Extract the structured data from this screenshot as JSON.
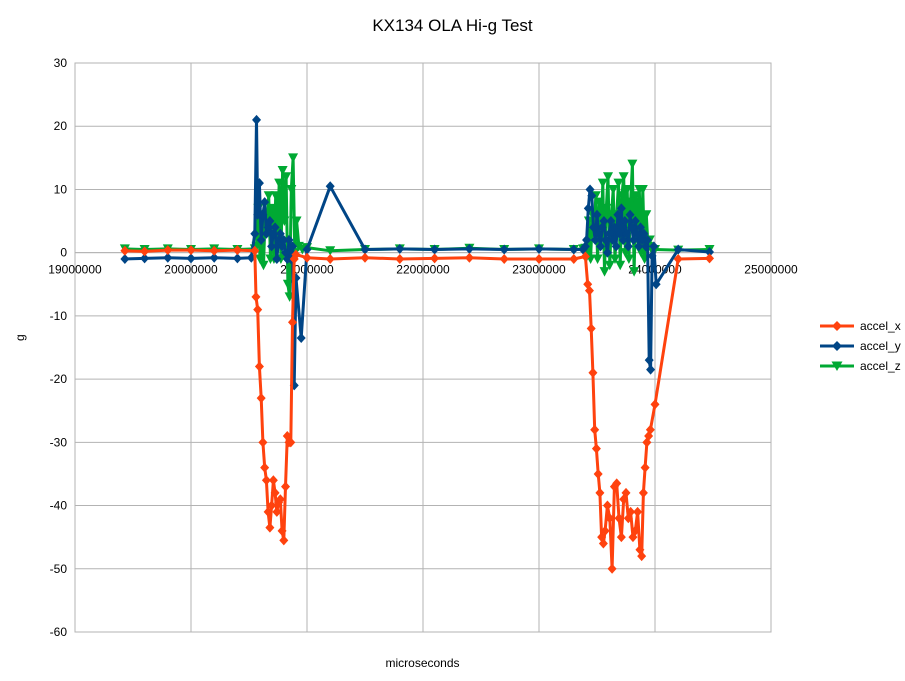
{
  "chart_data": {
    "type": "line",
    "title": "KX134 OLA Hi-g Test",
    "xlabel": "microseconds",
    "ylabel": "g",
    "xlim": [
      19000000,
      25000000
    ],
    "ylim": [
      -60,
      30
    ],
    "x_ticks": [
      19000000,
      20000000,
      21000000,
      22000000,
      23000000,
      24000000,
      25000000
    ],
    "y_ticks": [
      30,
      20,
      10,
      0,
      -10,
      -20,
      -30,
      -40,
      -50,
      -60
    ],
    "x_tick_labels": [
      "19000000",
      "20000000",
      "21000000",
      "22000000",
      "23000000",
      "24000000",
      "25000000"
    ],
    "y_tick_labels": [
      "30",
      "20",
      "10",
      "0",
      "-10",
      "-20",
      "-30",
      "-40",
      "-50",
      "-60"
    ],
    "grid": true,
    "legend": "right",
    "series": [
      {
        "name": "accel_x",
        "color": "#ff420e",
        "marker": "diamond",
        "x": [
          19430000,
          19600000,
          19800000,
          20000000,
          20200000,
          20400000,
          20550000,
          20560000,
          20575000,
          20590000,
          20605000,
          20620000,
          20635000,
          20650000,
          20665000,
          20680000,
          20695000,
          20710000,
          20725000,
          20740000,
          20755000,
          20770000,
          20785000,
          20800000,
          20815000,
          20830000,
          20845000,
          20860000,
          20875000,
          20890000,
          20905000,
          21000000,
          21200000,
          21500000,
          21800000,
          22100000,
          22400000,
          22700000,
          23000000,
          23300000,
          23400000,
          23420000,
          23435000,
          23450000,
          23465000,
          23480000,
          23495000,
          23510000,
          23525000,
          23540000,
          23555000,
          23570000,
          23590000,
          23610000,
          23630000,
          23650000,
          23670000,
          23690000,
          23710000,
          23730000,
          23750000,
          23770000,
          23790000,
          23810000,
          23830000,
          23850000,
          23870000,
          23885000,
          23900000,
          23915000,
          23930000,
          23945000,
          23960000,
          24000000,
          24200000,
          24470000
        ],
        "y": [
          0.3,
          0.2,
          0.4,
          0.4,
          0.3,
          0.4,
          0.3,
          -7,
          -9,
          -18,
          -23,
          -30,
          -34,
          -36,
          -41,
          -43.5,
          -40,
          -36,
          -38,
          -41,
          -39.5,
          -39,
          -44,
          -45.5,
          -37,
          -29,
          -30,
          -30,
          -11,
          -1,
          -0.3,
          -0.8,
          -1,
          -0.8,
          -1,
          -0.9,
          -0.8,
          -1,
          -1,
          -1,
          -0.6,
          -5,
          -6,
          -12,
          -19,
          -28,
          -31,
          -35,
          -38,
          -45,
          -46,
          -44,
          -40,
          -42,
          -50,
          -37,
          -36.5,
          -42,
          -45,
          -39,
          -38,
          -42,
          -41,
          -45,
          -44,
          -41,
          -47,
          -48,
          -38,
          -34,
          -30,
          -29,
          -28,
          -24,
          -1,
          -0.9
        ]
      },
      {
        "name": "accel_y",
        "color": "#004586",
        "marker": "diamond",
        "x": [
          19430000,
          19600000,
          19800000,
          20000000,
          20200000,
          20400000,
          20520000,
          20550000,
          20565000,
          20575000,
          20590000,
          20605000,
          20620000,
          20635000,
          20650000,
          20665000,
          20680000,
          20695000,
          20710000,
          20725000,
          20740000,
          20755000,
          20770000,
          20785000,
          20800000,
          20815000,
          20830000,
          20845000,
          20860000,
          20875000,
          20890000,
          20905000,
          20950000,
          21000000,
          21200000,
          21500000,
          21800000,
          22100000,
          22400000,
          22700000,
          23000000,
          23300000,
          23380000,
          23400000,
          23410000,
          23425000,
          23440000,
          23455000,
          23470000,
          23485000,
          23500000,
          23515000,
          23530000,
          23545000,
          23560000,
          23575000,
          23590000,
          23605000,
          23620000,
          23635000,
          23650000,
          23665000,
          23680000,
          23695000,
          23710000,
          23725000,
          23740000,
          23755000,
          23770000,
          23785000,
          23800000,
          23815000,
          23830000,
          23845000,
          23860000,
          23875000,
          23890000,
          23905000,
          23920000,
          23935000,
          23950000,
          23962000,
          23975000,
          23990000,
          24010000,
          24200000,
          24470000
        ],
        "y": [
          -1,
          -0.9,
          -0.8,
          -0.9,
          -0.8,
          -0.9,
          -0.8,
          3,
          21,
          6,
          11,
          2,
          6,
          8,
          3,
          4,
          5,
          1,
          3,
          4,
          -1,
          2,
          3,
          1,
          2,
          0,
          -1,
          2,
          -1,
          1,
          -21,
          -4,
          -13.5,
          0.5,
          10.5,
          0.5,
          0.6,
          0.5,
          0.6,
          0.5,
          0.6,
          0.5,
          0.5,
          1,
          2,
          7,
          10,
          9,
          4,
          2,
          6,
          3,
          1,
          4,
          5,
          2,
          0,
          3,
          5,
          2,
          4,
          1,
          6,
          3,
          7,
          2,
          5,
          3,
          1,
          6,
          4,
          2,
          5,
          3,
          1,
          4,
          2,
          3,
          1,
          2,
          -17,
          -18.5,
          -0.5,
          1,
          -5,
          0.5,
          0.1
        ]
      },
      {
        "name": "accel_z",
        "color": "#00a933",
        "marker": "triangle-down",
        "x": [
          19430000,
          19600000,
          19800000,
          20000000,
          20200000,
          20400000,
          20550000,
          20565000,
          20580000,
          20595000,
          20610000,
          20625000,
          20640000,
          20655000,
          20670000,
          20685000,
          20700000,
          20715000,
          20730000,
          20745000,
          20760000,
          20775000,
          20790000,
          20805000,
          20820000,
          20835000,
          20850000,
          20865000,
          20880000,
          20895000,
          20910000,
          20930000,
          20960000,
          21000000,
          21200000,
          21500000,
          21800000,
          22100000,
          22400000,
          22700000,
          23000000,
          23300000,
          23380000,
          23400000,
          23415000,
          23430000,
          23445000,
          23460000,
          23475000,
          23490000,
          23505000,
          23520000,
          23535000,
          23550000,
          23565000,
          23580000,
          23595000,
          23610000,
          23625000,
          23640000,
          23655000,
          23670000,
          23685000,
          23700000,
          23715000,
          23730000,
          23745000,
          23760000,
          23775000,
          23790000,
          23805000,
          23820000,
          23835000,
          23850000,
          23865000,
          23880000,
          23895000,
          23910000,
          23925000,
          23940000,
          23955000,
          23970000,
          24000000,
          24200000,
          24470000
        ],
        "y": [
          0.6,
          0.5,
          0.6,
          0.5,
          0.6,
          0.5,
          0.6,
          1,
          7,
          -1,
          5,
          -2,
          6,
          4,
          9,
          -1,
          7,
          -1,
          9,
          2,
          11,
          -1,
          13,
          5,
          12,
          -5,
          -7,
          10,
          15,
          0,
          5,
          1,
          0.5,
          0.8,
          0.3,
          0.5,
          0.6,
          0.5,
          0.7,
          0.5,
          0.6,
          0.5,
          0.6,
          0.7,
          -0.5,
          5,
          -1,
          6,
          3,
          9,
          -1,
          8,
          3,
          11,
          -3,
          7,
          12,
          -2,
          6,
          10,
          -1,
          6,
          11,
          -2,
          9,
          12,
          0,
          10,
          -1,
          8,
          14,
          -3,
          9,
          2,
          10,
          0,
          10,
          -1,
          6,
          1,
          2,
          0.5,
          0.5,
          0.4,
          0.5
        ]
      }
    ]
  }
}
